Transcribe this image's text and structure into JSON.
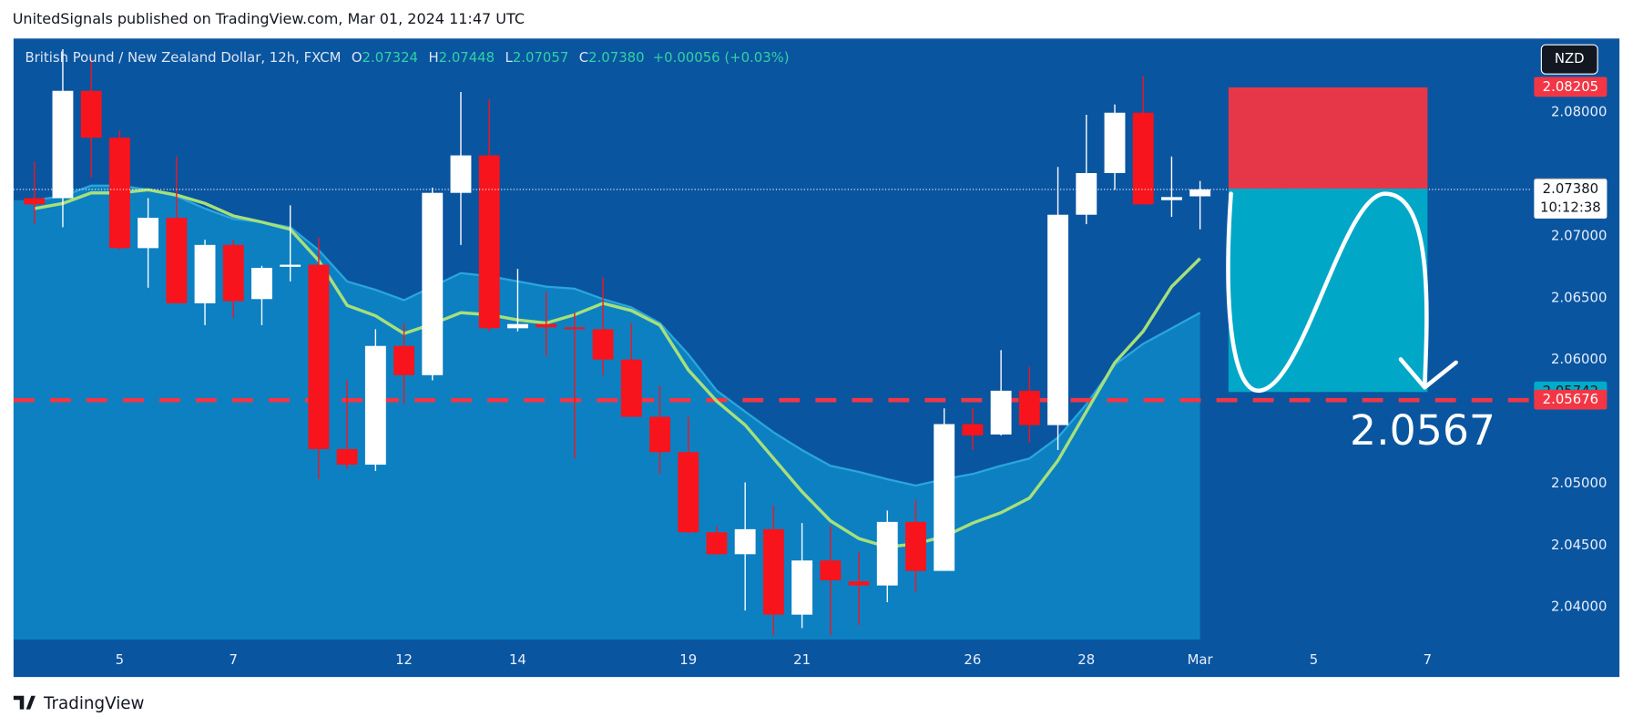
{
  "header": "UnitedSignals published on TradingView.com, Mar 01, 2024 11:47 UTC",
  "footer": "TradingView",
  "chart_data": {
    "type": "candlestick",
    "title": "British Pound / New Zealand Dollar, 12h, FXCM",
    "ohlc_legend": [
      {
        "key": "O",
        "text": "2.07324"
      },
      {
        "key": "H",
        "text": "2.07448"
      },
      {
        "key": "L",
        "text": "2.07057"
      },
      {
        "key": "C",
        "text": "2.07380"
      }
    ],
    "change": "+0.00056 (+0.03%)",
    "currency": "NZD",
    "categories": [
      null,
      null,
      null,
      "5",
      null,
      null,
      null,
      "7",
      null,
      null,
      null,
      null,
      null,
      "12",
      null,
      null,
      null,
      "14",
      null,
      null,
      null,
      null,
      null,
      "19",
      null,
      null,
      null,
      "21",
      null,
      null,
      null,
      null,
      null,
      "26",
      null,
      null,
      null,
      "28",
      null,
      null,
      null,
      "Mar",
      null,
      null,
      null,
      "5",
      null,
      null,
      null,
      "7",
      null,
      null,
      null
    ],
    "open": [
      2.07309,
      2.07309,
      2.08177,
      2.07798,
      2.06905,
      2.0715,
      2.06459,
      2.06931,
      2.06493,
      2.06754,
      2.06771,
      2.0528,
      2.05154,
      2.06114,
      2.05878,
      2.07352,
      2.07655,
      2.06257,
      2.06291,
      2.06265,
      2.06249,
      2.06004,
      2.05541,
      2.05255,
      2.04607,
      2.0443,
      2.04632,
      2.03941,
      2.04379,
      2.04211,
      2.04177,
      2.04691,
      2.04295,
      2.05482,
      2.05398,
      2.05752,
      2.05474,
      2.07175,
      2.07512,
      2.08,
      2.07293,
      2.07324,
      null,
      null,
      null,
      null,
      null,
      null,
      null,
      null,
      null,
      null,
      null
    ],
    "high": [
      2.07604,
      2.08514,
      2.08446,
      2.07857,
      2.07309,
      2.07646,
      2.06973,
      2.06973,
      2.06762,
      2.07251,
      2.0699,
      2.05836,
      2.06249,
      2.06299,
      2.07394,
      2.08168,
      2.08109,
      2.06737,
      2.06552,
      2.06383,
      2.0667,
      2.06299,
      2.05794,
      2.05541,
      2.04657,
      2.05011,
      2.04825,
      2.04682,
      2.04657,
      2.04447,
      2.04783,
      2.04868,
      2.05609,
      2.05609,
      2.0608,
      2.05945,
      2.07562,
      2.07983,
      2.08067,
      2.08295,
      2.07646,
      2.07448,
      null,
      null,
      null,
      null,
      null,
      null,
      null,
      null,
      null,
      null,
      null
    ],
    "low": [
      2.07099,
      2.07074,
      2.07478,
      2.06889,
      2.06585,
      2.06459,
      2.06282,
      2.06341,
      2.06282,
      2.06636,
      2.05036,
      2.0512,
      2.05103,
      2.05642,
      2.05836,
      2.06931,
      2.06232,
      2.06232,
      2.0603,
      2.05204,
      2.05878,
      2.05541,
      2.05078,
      2.04598,
      2.04421,
      2.03975,
      2.03773,
      2.03832,
      2.03773,
      2.03857,
      2.04042,
      2.04126,
      2.04295,
      2.05272,
      2.0539,
      2.05331,
      2.05272,
      2.07099,
      2.07377,
      2.07259,
      2.07158,
      2.07057,
      null,
      null,
      null,
      null,
      null,
      null,
      null,
      null,
      null,
      null,
      null
    ],
    "close": [
      2.07259,
      2.08177,
      2.07798,
      2.06905,
      2.0715,
      2.06459,
      2.06931,
      2.06476,
      2.06745,
      2.06771,
      2.0528,
      2.05154,
      2.06114,
      2.05878,
      2.07352,
      2.07655,
      2.06257,
      2.06291,
      2.06265,
      2.06249,
      2.06004,
      2.05541,
      2.05255,
      2.04607,
      2.0443,
      2.04632,
      2.03941,
      2.04379,
      2.04219,
      2.04177,
      2.04691,
      2.04295,
      2.05482,
      2.0539,
      2.05752,
      2.05474,
      2.07175,
      2.07512,
      2.08,
      2.07259,
      2.07318,
      2.0738,
      null,
      null,
      null,
      null,
      null,
      null,
      null,
      null,
      null,
      null,
      null
    ],
    "up_color": "#ffffff",
    "down_color": "#f7141c",
    "series": [
      {
        "color": "#2aa6dc",
        "fill": "#0d80c2",
        "values": [
          2.07293,
          2.07326,
          2.07411,
          2.07411,
          2.07377,
          2.07326,
          2.07225,
          2.07141,
          2.07116,
          2.07074,
          2.06889,
          2.06636,
          2.06568,
          2.06484,
          2.06594,
          2.06703,
          2.06678,
          2.06636,
          2.06594,
          2.06577,
          2.06493,
          2.06425,
          2.06299,
          2.06046,
          2.05752,
          2.05583,
          2.05415,
          2.05272,
          2.05145,
          2.05095,
          2.05036,
          2.04985,
          2.05036,
          2.05078,
          2.05145,
          2.05204,
          2.05373,
          2.05642,
          2.05962,
          2.06131,
          2.06257,
          2.06383,
          null,
          null,
          null,
          null,
          null,
          null,
          null,
          null,
          null,
          null,
          null
        ]
      },
      {
        "color": "#a6e07a",
        "values": [
          2.07225,
          2.07267,
          2.07352,
          2.07352,
          2.07377,
          2.07335,
          2.07267,
          2.07166,
          2.07116,
          2.07057,
          2.06804,
          2.06442,
          2.06358,
          2.06215,
          2.06291,
          2.06383,
          2.06366,
          2.06324,
          2.06299,
          2.06366,
          2.06459,
          2.064,
          2.06282,
          2.0592,
          2.05667,
          2.05474,
          2.05204,
          2.04935,
          2.04699,
          2.04556,
          2.04488,
          2.04514,
          2.04573,
          2.04682,
          2.04766,
          2.04884,
          2.05187,
          2.05583,
          2.05979,
          2.06232,
          2.06594,
          2.06821,
          null,
          null,
          null,
          null,
          null,
          null,
          null,
          null,
          null,
          null,
          null
        ]
      }
    ],
    "ylim": [
      2.0374,
      2.086
    ],
    "yticks": [
      {
        "value": 2.04,
        "label": "2.04000"
      },
      {
        "value": 2.045,
        "label": "2.04500"
      },
      {
        "value": 2.05,
        "label": "2.05000"
      },
      {
        "value": 2.06,
        "label": "2.06000"
      },
      {
        "value": 2.065,
        "label": "2.06500"
      },
      {
        "value": 2.07,
        "label": "2.07000"
      },
      {
        "value": 2.08,
        "label": "2.08000"
      }
    ],
    "levels": [
      {
        "value": 2.08205,
        "color": "#f23645",
        "text_color": "#ffffff"
      },
      {
        "value": 2.07386,
        "color": "#787b86",
        "text_color": "#ffffff"
      },
      {
        "value": 2.0738,
        "label": "2.07380",
        "countdown": "10:12:38",
        "color": "#ffffff",
        "text_color": "#131722"
      },
      {
        "value": 2.05742,
        "color": "#00acc9",
        "text_color": "#131722"
      },
      {
        "value": 2.05676,
        "color": "#f23645",
        "text_color": "#ffffff"
      }
    ],
    "annotation": "2.0567",
    "background": "#0a55a0"
  }
}
